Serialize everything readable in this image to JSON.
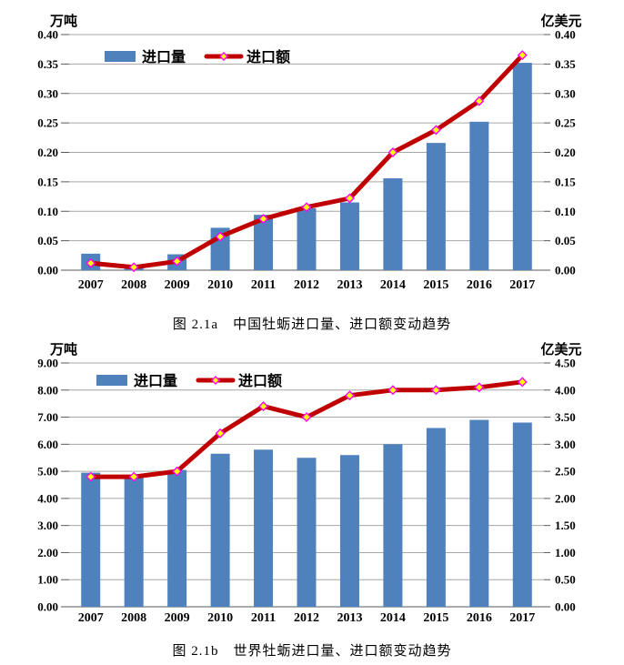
{
  "colors": {
    "bar": "#4F81BD",
    "line": "#C00000",
    "marker_fill": "#FFFF00",
    "marker_stroke": "#FF00FF",
    "grid": "#A6A6A6",
    "axis": "#595959",
    "text": "#000000",
    "background": "#FFFFFF"
  },
  "chart_data": [
    {
      "type": "bar+line",
      "caption": "图 2.1a　中国牡蛎进口量、进口额变动趋势",
      "categories": [
        "2007",
        "2008",
        "2009",
        "2010",
        "2011",
        "2012",
        "2013",
        "2014",
        "2015",
        "2016",
        "2017"
      ],
      "left_axis": {
        "label": "万吨",
        "min": 0,
        "max": 0.4,
        "step": 0.05,
        "tick_labels": [
          "0.40",
          "0.35",
          "0.30",
          "0.25",
          "0.20",
          "0.15",
          "0.10",
          "0.05",
          "0.00"
        ]
      },
      "right_axis": {
        "label": "亿美元",
        "min": 0,
        "max": 0.4,
        "step": 0.05,
        "tick_labels": [
          "0.40",
          "0.35",
          "0.30",
          "0.25",
          "0.20",
          "0.15",
          "0.10",
          "0.05",
          "0.00"
        ]
      },
      "grid": true,
      "legend_position": "top-inside",
      "series": [
        {
          "name": "进口量",
          "type": "bar",
          "axis": "left",
          "values": [
            0.028,
            0.007,
            0.027,
            0.072,
            0.094,
            0.105,
            0.115,
            0.156,
            0.216,
            0.252,
            0.352
          ]
        },
        {
          "name": "进口额",
          "type": "line",
          "axis": "right",
          "marker": "diamond",
          "values": [
            0.012,
            0.005,
            0.015,
            0.057,
            0.087,
            0.107,
            0.122,
            0.2,
            0.238,
            0.287,
            0.365
          ]
        }
      ]
    },
    {
      "type": "bar+line",
      "caption": "图 2.1b　世界牡蛎进口量、进口额变动趋势",
      "categories": [
        "2007",
        "2008",
        "2009",
        "2010",
        "2011",
        "2012",
        "2013",
        "2014",
        "2015",
        "2016",
        "2017"
      ],
      "left_axis": {
        "label": "万吨",
        "min": 0,
        "max": 9.0,
        "step": 1.0,
        "tick_labels": [
          "9.00",
          "8.00",
          "7.00",
          "6.00",
          "5.00",
          "4.00",
          "3.00",
          "2.00",
          "1.00",
          "0.00"
        ]
      },
      "right_axis": {
        "label": "亿美元",
        "min": 0,
        "max": 4.5,
        "step": 0.5,
        "tick_labels": [
          "4.50",
          "4.00",
          "3.50",
          "3.00",
          "2.50",
          "2.00",
          "1.50",
          "1.00",
          "0.50",
          "0.00"
        ]
      },
      "grid": true,
      "legend_position": "top-inside",
      "series": [
        {
          "name": "进口量",
          "type": "bar",
          "axis": "left",
          "values": [
            4.95,
            4.85,
            5.05,
            5.65,
            5.8,
            5.5,
            5.6,
            6.0,
            6.6,
            6.9,
            6.8
          ]
        },
        {
          "name": "进口额",
          "type": "line",
          "axis": "right",
          "marker": "diamond",
          "values": [
            2.4,
            2.4,
            2.5,
            3.2,
            3.7,
            3.5,
            3.9,
            4.0,
            4.0,
            4.05,
            4.15
          ]
        }
      ]
    }
  ]
}
